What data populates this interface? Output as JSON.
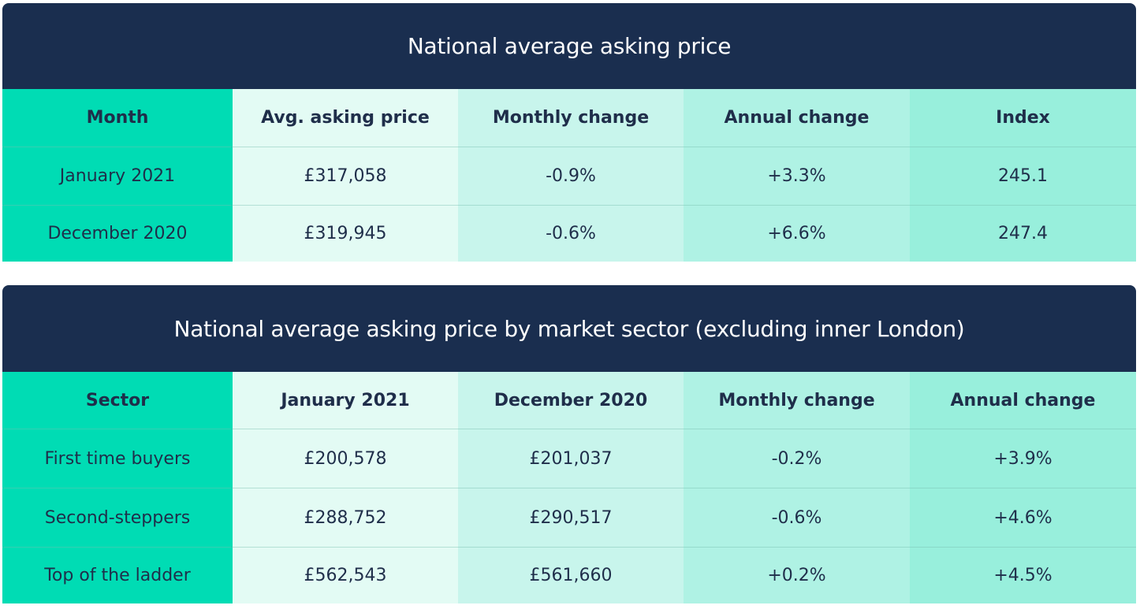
{
  "table1": {
    "title": "National average asking price",
    "headers": [
      "Month",
      "Avg. asking price",
      "Monthly change",
      "Annual change",
      "Index"
    ],
    "rows": [
      [
        "January 2021",
        "£317,058",
        "-0.9%",
        "+3.3%",
        "245.1"
      ],
      [
        "December 2020",
        "£319,945",
        "-0.6%",
        "+6.6%",
        "247.4"
      ]
    ]
  },
  "table2": {
    "title": "National average asking price by market sector (excluding inner London)",
    "headers": [
      "Sector",
      "January 2021",
      "December 2020",
      "Monthly change",
      "Annual change"
    ],
    "rows": [
      [
        "First time buyers",
        "£200,578",
        "£201,037",
        "-0.2%",
        "+3.9%"
      ],
      [
        "Second-steppers",
        "£288,752",
        "£290,517",
        "-0.6%",
        "+4.6%"
      ],
      [
        "Top of the ladder",
        "£562,543",
        "£561,660",
        "+0.2%",
        "+4.5%"
      ]
    ]
  },
  "colors": {
    "title_bg": "#1a2e4f",
    "col0": "#00dcb4",
    "col1": "#e3fbf4",
    "col2": "#c8f5ec",
    "col3": "#aff2e4",
    "col4": "#98efdc",
    "text": "#1f2e4a"
  }
}
